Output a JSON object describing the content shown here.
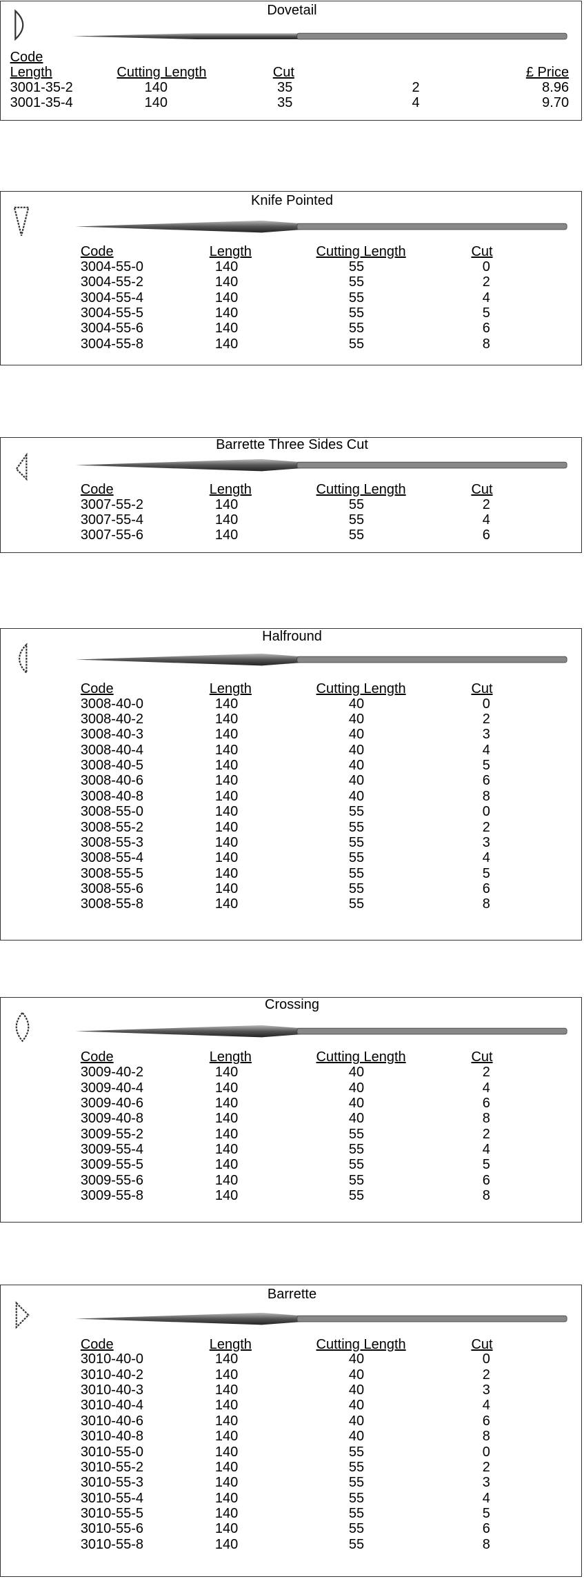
{
  "sections": [
    {
      "title": "Dovetail",
      "headers": [
        "Code",
        "Length",
        "Cutting Length",
        "Cut",
        "£ Price"
      ],
      "rows": [
        [
          "3001-35-2",
          "140",
          "35",
          "2",
          "8.96"
        ],
        [
          "3001-35-4",
          "140",
          "35",
          "4",
          "9.70"
        ]
      ]
    },
    {
      "title": "Knife Pointed",
      "headers": [
        "Code",
        "Length",
        "Cutting Length",
        "Cut"
      ],
      "rows": [
        [
          "3004-55-0",
          "140",
          "55",
          "0"
        ],
        [
          "3004-55-2",
          "140",
          "55",
          "2"
        ],
        [
          "3004-55-4",
          "140",
          "55",
          "4"
        ],
        [
          "3004-55-5",
          "140",
          "55",
          "5"
        ],
        [
          "3004-55-6",
          "140",
          "55",
          "6"
        ],
        [
          "3004-55-8",
          "140",
          "55",
          "8"
        ]
      ]
    },
    {
      "title": "Barrette Three Sides Cut",
      "headers": [
        "Code",
        "Length",
        "Cutting Length",
        "Cut"
      ],
      "rows": [
        [
          "3007-55-2",
          "140",
          "55",
          "2"
        ],
        [
          "3007-55-4",
          "140",
          "55",
          "4"
        ],
        [
          "3007-55-6",
          "140",
          "55",
          "6"
        ]
      ]
    },
    {
      "title": "Halfround",
      "headers": [
        "Code",
        "Length",
        "Cutting Length",
        "Cut"
      ],
      "rows": [
        [
          "3008-40-0",
          "140",
          "40",
          "0"
        ],
        [
          "3008-40-2",
          "140",
          "40",
          "2"
        ],
        [
          "3008-40-3",
          "140",
          "40",
          "3"
        ],
        [
          "3008-40-4",
          "140",
          "40",
          "4"
        ],
        [
          "3008-40-5",
          "140",
          "40",
          "5"
        ],
        [
          "3008-40-6",
          "140",
          "40",
          "6"
        ],
        [
          "3008-40-8",
          "140",
          "40",
          "8"
        ],
        [
          "3008-55-0",
          "140",
          "55",
          "0"
        ],
        [
          "3008-55-2",
          "140",
          "55",
          "2"
        ],
        [
          "3008-55-3",
          "140",
          "55",
          "3"
        ],
        [
          "3008-55-4",
          "140",
          "55",
          "4"
        ],
        [
          "3008-55-5",
          "140",
          "55",
          "5"
        ],
        [
          "3008-55-6",
          "140",
          "55",
          "6"
        ],
        [
          "3008-55-8",
          "140",
          "55",
          "8"
        ]
      ]
    },
    {
      "title": "Crossing",
      "headers": [
        "Code",
        "Length",
        "Cutting Length",
        "Cut"
      ],
      "rows": [
        [
          "3009-40-2",
          "140",
          "40",
          "2"
        ],
        [
          "3009-40-4",
          "140",
          "40",
          "4"
        ],
        [
          "3009-40-6",
          "140",
          "40",
          "6"
        ],
        [
          "3009-40-8",
          "140",
          "40",
          "8"
        ],
        [
          "3009-55-2",
          "140",
          "55",
          "2"
        ],
        [
          "3009-55-4",
          "140",
          "55",
          "4"
        ],
        [
          "3009-55-5",
          "140",
          "55",
          "5"
        ],
        [
          "3009-55-6",
          "140",
          "55",
          "6"
        ],
        [
          "3009-55-8",
          "140",
          "55",
          "8"
        ]
      ]
    },
    {
      "title": "Barrette",
      "headers": [
        "Code",
        "Length",
        "Cutting Length",
        "Cut"
      ],
      "rows": [
        [
          "3010-40-0",
          "140",
          "40",
          "0"
        ],
        [
          "3010-40-2",
          "140",
          "40",
          "2"
        ],
        [
          "3010-40-3",
          "140",
          "40",
          "3"
        ],
        [
          "3010-40-4",
          "140",
          "40",
          "4"
        ],
        [
          "3010-40-6",
          "140",
          "40",
          "6"
        ],
        [
          "3010-40-8",
          "140",
          "40",
          "8"
        ],
        [
          "3010-55-0",
          "140",
          "55",
          "0"
        ],
        [
          "3010-55-2",
          "140",
          "55",
          "2"
        ],
        [
          "3010-55-3",
          "140",
          "55",
          "3"
        ],
        [
          "3010-55-4",
          "140",
          "55",
          "4"
        ],
        [
          "3010-55-5",
          "140",
          "55",
          "5"
        ],
        [
          "3010-55-6",
          "140",
          "55",
          "6"
        ],
        [
          "3010-55-8",
          "140",
          "55",
          "8"
        ]
      ]
    }
  ]
}
